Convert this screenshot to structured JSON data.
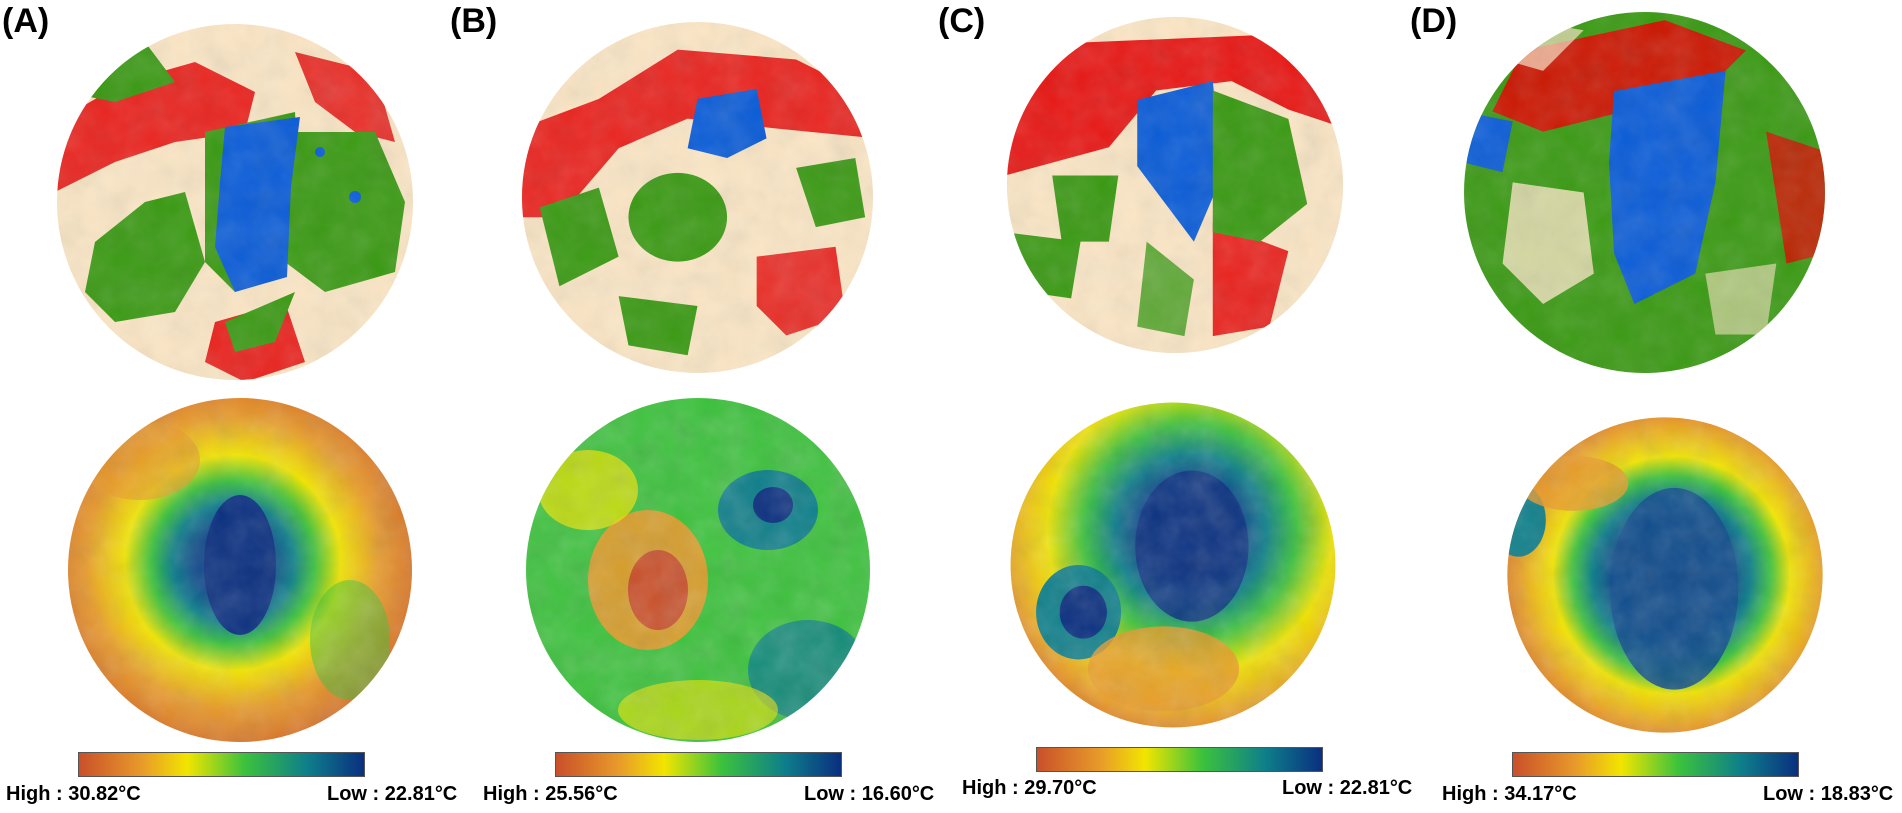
{
  "panels": [
    {
      "id": "A",
      "label": "(A)",
      "high": "High : 30.82°C",
      "low": "Low : 22.81°C"
    },
    {
      "id": "B",
      "label": "(B)",
      "high": "High : 25.56°C",
      "low": "Low : 16.60°C"
    },
    {
      "id": "C",
      "label": "(C)",
      "high": "High : 29.70°C",
      "low": "Low : 22.81°C"
    },
    {
      "id": "D",
      "label": "(D)",
      "high": "High : 34.17°C",
      "low": "Low : 18.83°C"
    }
  ],
  "colors": {
    "land_built": "#e60000",
    "land_green": "#3a9a13",
    "land_water": "#0a5cd8",
    "land_bare": "#fbe6c5",
    "temp_ramp": [
      "#c9502a",
      "#e89a2a",
      "#f2e500",
      "#3cc23c",
      "#0e7f8a",
      "#0a2f80"
    ]
  }
}
